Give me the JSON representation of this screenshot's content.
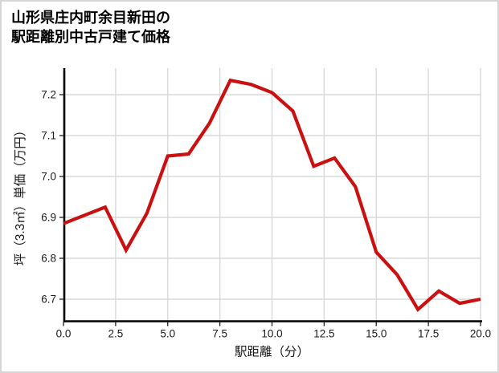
{
  "title": {
    "line1": "山形県庄内町余目新田の",
    "line2": "駅距離別中古戸建て価格"
  },
  "chart_data": {
    "type": "line",
    "title": "山形県庄内町余目新田の駅距離別中古戸建て価格",
    "xlabel": "駅距離（分）",
    "ylabel": "坪（3.3㎡）単価（万円）",
    "x": [
      0,
      1,
      2,
      3,
      4,
      5,
      6,
      7,
      8,
      9,
      10,
      11,
      12,
      13,
      14,
      15,
      16,
      17,
      18,
      19,
      20
    ],
    "y": [
      6.885,
      6.905,
      6.925,
      6.82,
      6.91,
      7.05,
      7.055,
      7.13,
      7.235,
      7.225,
      7.205,
      7.16,
      7.025,
      7.045,
      6.975,
      6.815,
      6.76,
      6.675,
      6.72,
      6.69,
      6.7
    ],
    "xticks": [
      0,
      2.5,
      5,
      7.5,
      10,
      12.5,
      15,
      17.5,
      20
    ],
    "xtick_labels": [
      "0.0",
      "2.5",
      "5.0",
      "7.5",
      "10.0",
      "12.5",
      "15.0",
      "17.5",
      "20.0"
    ],
    "yticks": [
      6.7,
      6.8,
      6.9,
      7.0,
      7.1,
      7.2
    ],
    "ytick_labels": [
      "6.7",
      "6.8",
      "6.9",
      "7.0",
      "7.1",
      "7.2"
    ],
    "xlim": [
      0,
      20
    ],
    "ylim": [
      6.645,
      7.265
    ],
    "grid": true,
    "legend": "none",
    "line_color": "#c91111",
    "grid_color": "#d9d9d9",
    "axis_color": "#000000",
    "tick_color": "#1a1a1a"
  }
}
